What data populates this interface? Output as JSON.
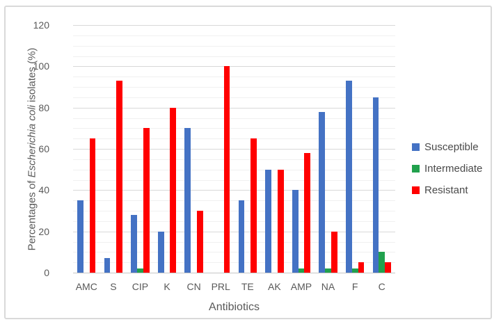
{
  "figure": {
    "description": "Grouped bar chart of antibiotic susceptibility of Escherichia coli isolates"
  },
  "chart_data": {
    "type": "bar",
    "title": "",
    "categories": [
      "AMC",
      "S",
      "CIP",
      "K",
      "CN",
      "PRL",
      "TE",
      "AK",
      "AMP",
      "NA",
      "F",
      "C"
    ],
    "series": [
      {
        "name": "Susceptible",
        "color": "#4472C4",
        "values": [
          35,
          7,
          28,
          20,
          70,
          0,
          35,
          50,
          40,
          78,
          93,
          85
        ]
      },
      {
        "name": "Intermediate",
        "color": "#21A14D",
        "values": [
          0,
          0,
          2,
          0,
          0,
          0,
          0,
          0,
          2,
          2,
          2,
          10
        ]
      },
      {
        "name": "Resistant",
        "color": "#FF0000",
        "values": [
          65,
          93,
          70,
          80,
          30,
          100,
          65,
          50,
          58,
          20,
          5,
          5
        ]
      }
    ],
    "xlabel": "Antibiotics",
    "ylabel_plain": "Percentages of Escherichia coli isolates (%)",
    "ylabel_parts": [
      {
        "text": "Percentages of ",
        "italic": false
      },
      {
        "text": "Escherichia coli",
        "italic": true
      },
      {
        "text": " isolates (%)",
        "italic": false
      }
    ],
    "ylim": [
      0,
      120
    ],
    "yticks": [
      0,
      20,
      40,
      60,
      80,
      100,
      120
    ],
    "ytick_major_interval": 20,
    "ytick_minor_interval": 5,
    "grid": true,
    "legend_position": "right",
    "colors": {
      "axis_text": "#595959",
      "legend_text": "#4a4a4a",
      "major_gridline": "#d8d8d8",
      "minor_gridline": "#f0f0f0",
      "frame_border": "#d9d9d9"
    }
  }
}
